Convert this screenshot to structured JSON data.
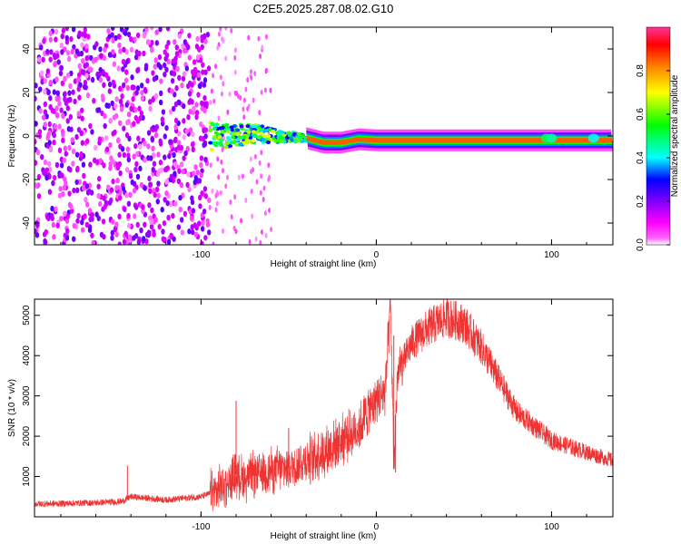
{
  "title": "C2E5.2025.287.08.02.G10",
  "chart_data": [
    {
      "type": "heatmap",
      "xlabel": "Height of straight line (km)",
      "ylabel": "Frequency (Hz)",
      "xlim": [
        -195,
        135
      ],
      "ylim": [
        -50,
        50
      ],
      "xticks": [
        -100,
        0,
        100
      ],
      "xtick_labels": [
        "-100",
        "0",
        "100"
      ],
      "yticks": [
        -40,
        -20,
        0,
        20,
        40
      ],
      "ytick_labels": [
        "-40",
        "-20",
        "0",
        "20",
        "40"
      ],
      "colorbar": {
        "label": "Normalized spectral amplitude",
        "range": [
          0,
          1
        ],
        "ticks": [
          0.0,
          0.2,
          0.4,
          0.6,
          0.8
        ],
        "tick_labels": [
          "0.0",
          "0.2",
          "0.4",
          "0.6",
          "0.8"
        ],
        "colors": [
          "#ffffff",
          "#ff00ff",
          "#8000ff",
          "#0000ff",
          "#00ffff",
          "#00ff00",
          "#ffff00",
          "#ff8000",
          "#ff0000",
          "#ff3399"
        ]
      },
      "regions": [
        {
          "name": "broadband noise",
          "x": [
            -195,
            -95
          ],
          "freq": [
            -50,
            50
          ],
          "amplitude": 0.1
        },
        {
          "name": "sparse noise",
          "x": [
            -95,
            -60
          ],
          "freq": [
            -50,
            50
          ],
          "amplitude": 0.05
        },
        {
          "name": "emerging carrier",
          "x": [
            -95,
            -40
          ],
          "freq_center": 1,
          "amplitude": 0.5
        },
        {
          "name": "carrier",
          "x": [
            -40,
            135
          ],
          "freq_center": -2.5,
          "amplitude": 0.95
        }
      ],
      "carrier_center_hz": [
        {
          "x": -95,
          "f": 0
        },
        {
          "x": -70,
          "f": 1
        },
        {
          "x": -40,
          "f": -1
        },
        {
          "x": -30,
          "f": -3
        },
        {
          "x": -20,
          "f": -3
        },
        {
          "x": -10,
          "f": -1.5
        },
        {
          "x": 0,
          "f": -2
        },
        {
          "x": 135,
          "f": -2
        }
      ]
    },
    {
      "type": "line",
      "xlabel": "Height of straight line (km)",
      "ylabel": "SNR (10 * v/v)",
      "xlim": [
        -195,
        135
      ],
      "ylim": [
        0,
        5400
      ],
      "xticks": [
        -100,
        0,
        100
      ],
      "xtick_labels": [
        "-100",
        "0",
        "100"
      ],
      "yticks": [
        1000,
        2000,
        3000,
        4000,
        5000
      ],
      "ytick_labels": [
        "1000",
        "2000",
        "3000",
        "4000",
        "5000"
      ],
      "color": "#ee3333",
      "series": [
        {
          "name": "SNR",
          "x": [
            -195,
            -180,
            -160,
            -145,
            -140,
            -120,
            -100,
            -90,
            -80,
            -75,
            -70,
            -60,
            -50,
            -40,
            -30,
            -20,
            -10,
            -5,
            0,
            5,
            7,
            8,
            9,
            10,
            12,
            15,
            20,
            30,
            40,
            50,
            60,
            70,
            80,
            100,
            120,
            135
          ],
          "y": [
            320,
            330,
            350,
            380,
            500,
            420,
            500,
            650,
            1050,
            950,
            1050,
            1150,
            1200,
            1400,
            1600,
            1900,
            2200,
            2600,
            2900,
            3100,
            4400,
            5200,
            3600,
            1200,
            3500,
            3800,
            4300,
            4700,
            4950,
            4800,
            4200,
            3400,
            2600,
            1900,
            1600,
            1400
          ]
        }
      ],
      "spikes": [
        {
          "x": -142,
          "y": 1270
        },
        {
          "x": -80,
          "y": 2880
        },
        {
          "x": -50,
          "y": 2200
        },
        {
          "x": 8,
          "y": 5400
        },
        {
          "x": 10,
          "y": 4500
        },
        {
          "x": 11,
          "y": 1100
        }
      ]
    }
  ]
}
